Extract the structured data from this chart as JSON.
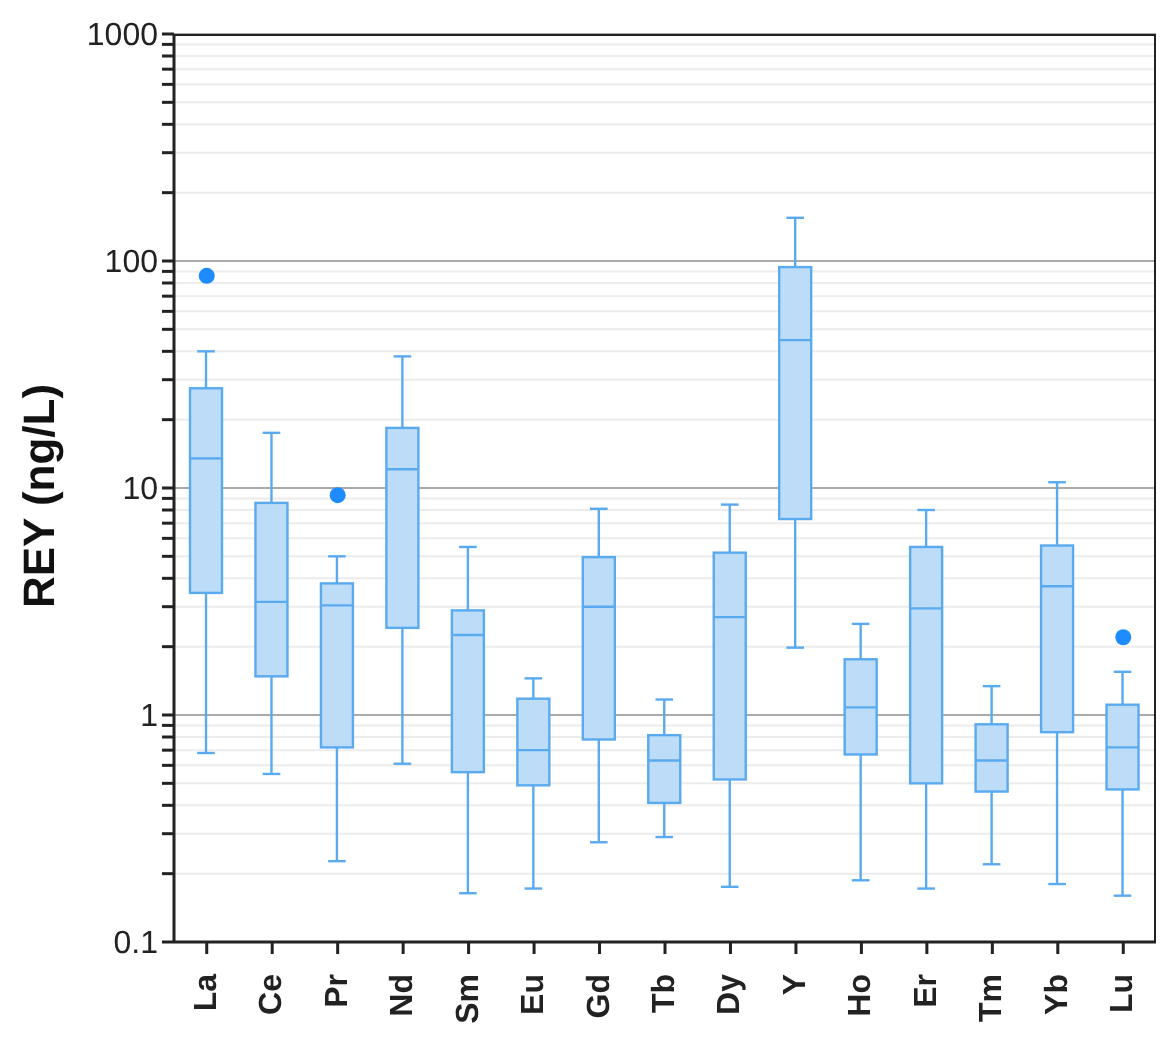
{
  "chart_data": {
    "type": "box",
    "ylabel": "REY (ng/L)",
    "log": "y",
    "grid": "y",
    "color": "#5aaaf0",
    "categories": [
      "La",
      "Ce",
      "Pr",
      "Nd",
      "Sm",
      "Eu",
      "Gd",
      "Tb",
      "Dy",
      "Y",
      "Ho",
      "Er",
      "Tm",
      "Yb",
      "Lu"
    ],
    "boxes": [
      {
        "low": 0.68,
        "q1": 3.45,
        "median": 13.5,
        "q3": 27.5,
        "high": 40,
        "outliers": [
          86
        ]
      },
      {
        "low": 0.55,
        "q1": 1.48,
        "median": 3.15,
        "q3": 8.6,
        "high": 17.5
      },
      {
        "low": 0.227,
        "q1": 0.72,
        "median": 3.04,
        "q3": 3.8,
        "high": 5.0,
        "outliers": [
          9.3
        ]
      },
      {
        "low": 0.61,
        "q1": 2.42,
        "median": 12.1,
        "q3": 18.4,
        "high": 38
      },
      {
        "low": 0.164,
        "q1": 0.56,
        "median": 2.25,
        "q3": 2.89,
        "high": 5.5
      },
      {
        "low": 0.172,
        "q1": 0.49,
        "median": 0.7,
        "q3": 1.18,
        "high": 1.45
      },
      {
        "low": 0.275,
        "q1": 0.78,
        "median": 3.0,
        "q3": 4.96,
        "high": 8.1
      },
      {
        "low": 0.29,
        "q1": 0.41,
        "median": 0.63,
        "q3": 0.815,
        "high": 1.17
      },
      {
        "low": 0.175,
        "q1": 0.52,
        "median": 2.7,
        "q3": 5.19,
        "high": 8.45
      },
      {
        "low": 1.98,
        "q1": 7.3,
        "median": 44.8,
        "q3": 94,
        "high": 155
      },
      {
        "low": 0.187,
        "q1": 0.67,
        "median": 1.08,
        "q3": 1.76,
        "high": 2.52
      },
      {
        "low": 0.172,
        "q1": 0.5,
        "median": 2.95,
        "q3": 5.5,
        "high": 8.0
      },
      {
        "low": 0.22,
        "q1": 0.46,
        "median": 0.63,
        "q3": 0.91,
        "high": 1.34
      },
      {
        "low": 0.18,
        "q1": 0.84,
        "median": 3.69,
        "q3": 5.58,
        "high": 10.6
      },
      {
        "low": 0.16,
        "q1": 0.47,
        "median": 0.72,
        "q3": 1.11,
        "high": 1.55,
        "outliers": [
          2.2
        ]
      }
    ],
    "ylim": [
      0.1,
      1000
    ],
    "yticks": [
      0.1,
      {
        "value": 0.2,
        "label": null
      },
      {
        "value": 0.3,
        "label": null
      },
      {
        "value": 0.4,
        "label": null
      },
      {
        "value": 0.5,
        "label": null
      },
      {
        "value": 0.6,
        "label": null
      },
      {
        "value": 0.7,
        "label": null
      },
      {
        "value": 0.8,
        "label": null
      },
      {
        "value": 0.9,
        "label": null
      },
      1,
      {
        "value": 2,
        "label": null
      },
      {
        "value": 3,
        "label": null
      },
      {
        "value": 4,
        "label": null
      },
      {
        "value": 5,
        "label": null
      },
      {
        "value": 6,
        "label": null
      },
      {
        "value": 7,
        "label": null
      },
      {
        "value": 8,
        "label": null
      },
      {
        "value": 9,
        "label": null
      },
      10,
      {
        "value": 20,
        "label": null
      },
      {
        "value": 30,
        "label": null
      },
      {
        "value": 40,
        "label": null
      },
      {
        "value": 50,
        "label": null
      },
      {
        "value": 60,
        "label": null
      },
      {
        "value": 70,
        "label": null
      },
      {
        "value": 80,
        "label": null
      },
      {
        "value": 90,
        "label": null
      },
      100,
      {
        "value": 200,
        "label": null
      },
      {
        "value": 300,
        "label": null
      },
      {
        "value": 400,
        "label": null
      },
      {
        "value": 500,
        "label": null
      },
      {
        "value": 600,
        "label": null
      },
      {
        "value": 700,
        "label": null
      },
      {
        "value": 800,
        "label": null
      },
      {
        "value": 900,
        "label": null
      },
      1000
    ]
  }
}
